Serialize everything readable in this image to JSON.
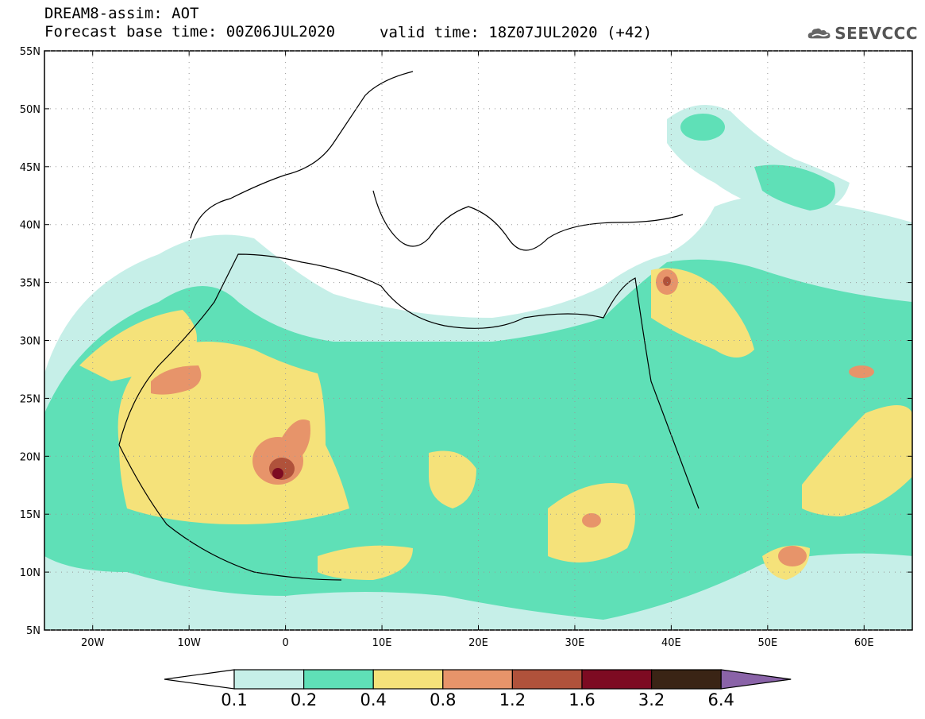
{
  "header": {
    "title_line1": "DREAM8-assim: AOT",
    "title_line2": "Forecast base time: 00Z06JUL2020",
    "valid_time": "valid time: 18Z07JUL2020 (+42)"
  },
  "logo": {
    "text": "SEEVCCC",
    "icon": "cloud-icon"
  },
  "map": {
    "lat_labels": [
      "55N",
      "50N",
      "45N",
      "40N",
      "35N",
      "30N",
      "25N",
      "20N",
      "15N",
      "10N",
      "5N"
    ],
    "lon_labels": [
      "20W",
      "10W",
      "0",
      "10E",
      "20E",
      "30E",
      "40E",
      "50E",
      "60E"
    ],
    "lon_range": [
      -25,
      65
    ],
    "lat_range": [
      5,
      55
    ],
    "field": "AOT"
  },
  "legend": {
    "labels": [
      "0.1",
      "0.2",
      "0.4",
      "0.8",
      "1.2",
      "1.6",
      "3.2",
      "6.4"
    ],
    "colors": [
      "#c6efe8",
      "#5fe0b7",
      "#f5e27a",
      "#e7946a",
      "#b0523b",
      "#7d0b22",
      "#3a2415",
      "#8a63a8"
    ],
    "under_color": "#ffffff"
  }
}
